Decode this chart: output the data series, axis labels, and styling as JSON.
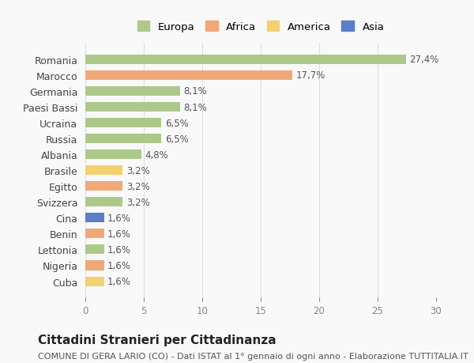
{
  "countries": [
    "Romania",
    "Marocco",
    "Germania",
    "Paesi Bassi",
    "Ucraina",
    "Russia",
    "Albania",
    "Brasile",
    "Egitto",
    "Svizzera",
    "Cina",
    "Benin",
    "Lettonia",
    "Nigeria",
    "Cuba"
  ],
  "values": [
    27.4,
    17.7,
    8.1,
    8.1,
    6.5,
    6.5,
    4.8,
    3.2,
    3.2,
    3.2,
    1.6,
    1.6,
    1.6,
    1.6,
    1.6
  ],
  "labels": [
    "27,4%",
    "17,7%",
    "8,1%",
    "8,1%",
    "6,5%",
    "6,5%",
    "4,8%",
    "3,2%",
    "3,2%",
    "3,2%",
    "1,6%",
    "1,6%",
    "1,6%",
    "1,6%",
    "1,6%"
  ],
  "colors": [
    "#adc98a",
    "#f0a878",
    "#adc98a",
    "#adc98a",
    "#adc98a",
    "#adc98a",
    "#adc98a",
    "#f5d070",
    "#f0a878",
    "#adc98a",
    "#5b7ec9",
    "#f0a878",
    "#adc98a",
    "#f0a878",
    "#f5d070"
  ],
  "continent_colors": {
    "Europa": "#adc98a",
    "Africa": "#f0a878",
    "America": "#f5d070",
    "Asia": "#5b7ec9"
  },
  "legend_order": [
    "Europa",
    "Africa",
    "America",
    "Asia"
  ],
  "title": "Cittadini Stranieri per Cittadinanza",
  "subtitle": "COMUNE DI GERA LARIO (CO) - Dati ISTAT al 1° gennaio di ogni anno - Elaborazione TUTTITALIA.IT",
  "xlim": [
    0,
    30
  ],
  "xticks": [
    0,
    5,
    10,
    15,
    20,
    25,
    30
  ],
  "bg_color": "#f9f9f9",
  "bar_height": 0.6,
  "label_fontsize": 8.5,
  "title_fontsize": 11,
  "subtitle_fontsize": 8
}
